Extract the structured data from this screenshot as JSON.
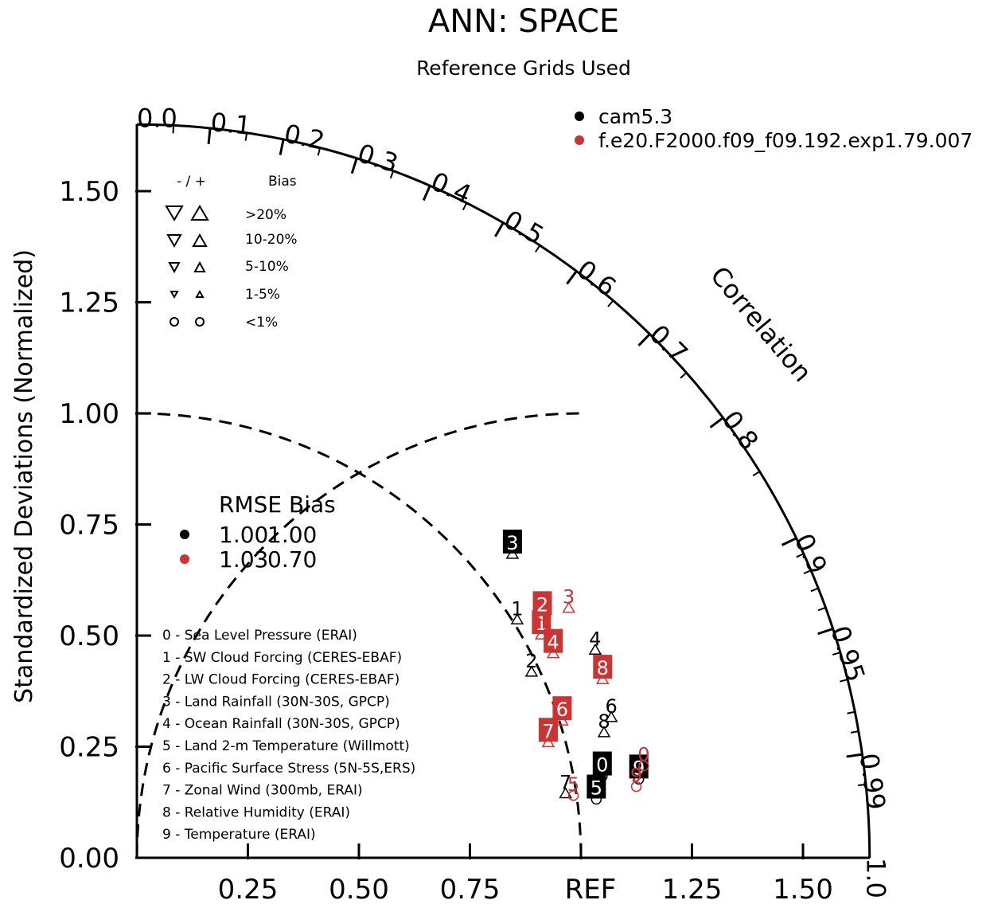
{
  "chart_data": {
    "type": "taylor",
    "title": "ANN: SPACE",
    "subtitle": "Reference Grids Used",
    "ylabel": "Standardized Deviations (Normalized)",
    "correlation_label": "Correlation",
    "reference_label": "REF",
    "std_range": [
      0,
      1.65
    ],
    "std_ticks": [
      "0.00",
      "0.25",
      "0.50",
      "0.75",
      "1.00",
      "1.25",
      "1.50"
    ],
    "x_ticks": [
      "0.25",
      "0.50",
      "0.75",
      "1.25",
      "1.50"
    ],
    "correlation_ticks": [
      "0.0",
      "0.1",
      "0.2",
      "0.3",
      "0.4",
      "0.5",
      "0.6",
      "0.7",
      "0.8",
      "0.9",
      "0.95",
      "0.99",
      "1.0"
    ],
    "series": [
      {
        "name": "cam5.3",
        "color": "#000000",
        "rmse": "1.00",
        "bias": "1.00",
        "points": [
          {
            "var": "0",
            "std": 1.064,
            "corr": 0.985,
            "style": "box",
            "marker": "circle"
          },
          {
            "var": "1",
            "std": 1.01,
            "corr": 0.848,
            "style": "plain",
            "marker": "up"
          },
          {
            "var": "2",
            "std": 0.982,
            "corr": 0.905,
            "style": "plain",
            "marker": "up"
          },
          {
            "var": "3",
            "std": 1.087,
            "corr": 0.778,
            "style": "box",
            "marker": "up"
          },
          {
            "var": "4",
            "std": 1.133,
            "corr": 0.911,
            "style": "plain",
            "marker": "up"
          },
          {
            "var": "5",
            "std": 1.043,
            "corr": 0.992,
            "style": "box",
            "marker": "circle"
          },
          {
            "var": "6",
            "std": 1.114,
            "corr": 0.959,
            "style": "plain",
            "marker": "up"
          },
          {
            "var": "7",
            "std": 0.976,
            "corr": 0.989,
            "style": "plain",
            "marker": "up"
          },
          {
            "var": "8",
            "std": 1.089,
            "corr": 0.966,
            "style": "plain",
            "marker": "up"
          },
          {
            "var": "9",
            "std": 1.144,
            "corr": 0.988,
            "style": "box",
            "marker": "circle"
          }
        ]
      },
      {
        "name": "f.e20.F2000.f09_f09.192.exp1.79.007",
        "color": "#cc3333",
        "rmse": "1.03",
        "bias": "0.70",
        "points": [
          {
            "var": "0",
            "std": 1.16,
            "corr": 0.984,
            "style": "plain",
            "marker": "circle"
          },
          {
            "var": "1",
            "std": 1.04,
            "corr": 0.876,
            "style": "box",
            "marker": "up"
          },
          {
            "var": "2",
            "std": 1.063,
            "corr": 0.859,
            "style": "box",
            "marker": "up"
          },
          {
            "var": "3",
            "std": 1.123,
            "corr": 0.866,
            "style": "plain",
            "marker": "up"
          },
          {
            "var": "4",
            "std": 1.044,
            "corr": 0.898,
            "style": "box",
            "marker": "up"
          },
          {
            "var": "5",
            "std": 0.993,
            "corr": 0.99,
            "style": "plain",
            "marker": "circle"
          },
          {
            "var": "6",
            "std": 1.006,
            "corr": 0.952,
            "style": "box",
            "marker": "up"
          },
          {
            "var": "7",
            "std": 0.962,
            "corr": 0.963,
            "style": "box",
            "marker": "up"
          },
          {
            "var": "8",
            "std": 1.123,
            "corr": 0.934,
            "style": "box",
            "marker": "up"
          },
          {
            "var": "9",
            "std": 1.136,
            "corr": 0.99,
            "style": "plain",
            "marker": "circle"
          }
        ]
      }
    ],
    "variables": [
      "0 - Sea Level Pressure (ERAI)",
      "1 - SW Cloud Forcing (CERES-EBAF)",
      "2 - LW Cloud Forcing (CERES-EBAF)",
      "3 - Land Rainfall (30N-30S, GPCP)",
      "4 - Ocean Rainfall (30N-30S, GPCP)",
      "5 - Land 2-m Temperature (Willmott)",
      "6 - Pacific Surface Stress (5N-5S,ERS)",
      "7 - Zonal Wind (300mb, ERAI)",
      "8 - Relative Humidity (ERAI)",
      "9 - Temperature (ERAI)"
    ],
    "bias_legend": {
      "header_sign": "- / +",
      "header_label": "Bias",
      "rows": [
        ">20%",
        "10-20%",
        "5-10%",
        "1-5%",
        "<1%"
      ]
    },
    "stats_header": "RMSE Bias"
  }
}
